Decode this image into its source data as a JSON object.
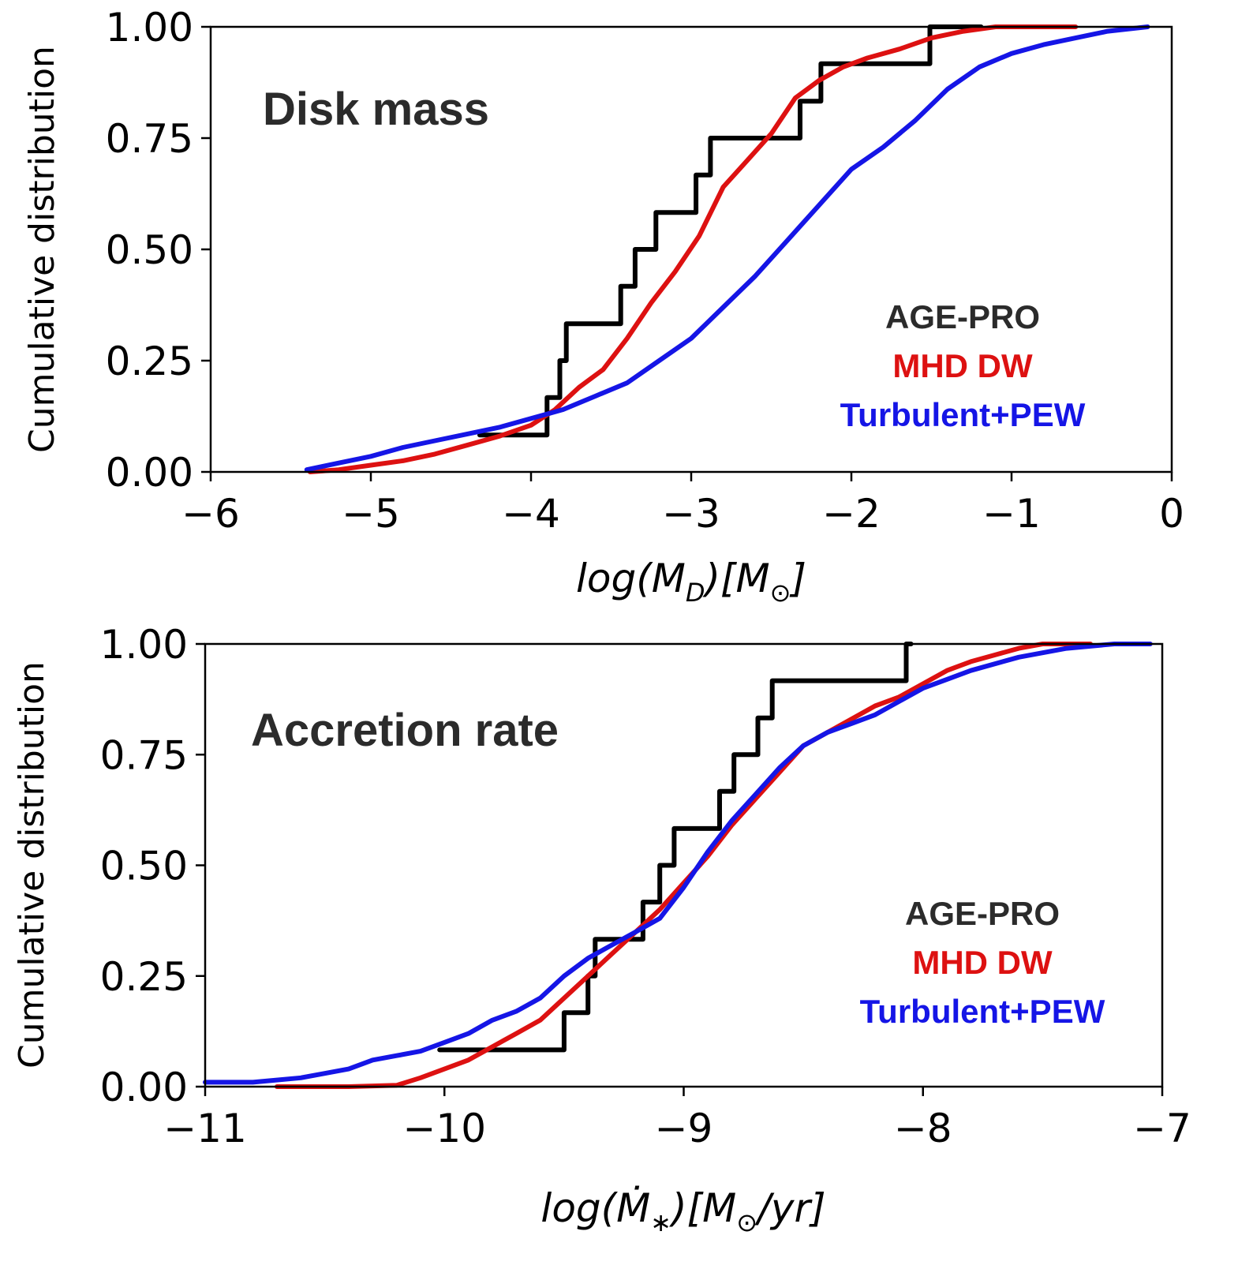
{
  "chart_data": [
    {
      "type": "line",
      "title": "Disk mass",
      "xlabel": "log(M_D)[M_⊙]",
      "xlabel_parts": {
        "pre": "log(",
        "M": "M",
        "sub": "D",
        "mid": ")[",
        "M2": "M",
        "sun": "⊙",
        "post": "]"
      },
      "ylabel": "Cumulative distribution",
      "xlim": [
        -6,
        0
      ],
      "ylim": [
        0,
        1
      ],
      "xticks": [
        -6,
        -5,
        -4,
        -3,
        -2,
        -1,
        0
      ],
      "xtick_labels": [
        "−6",
        "−5",
        "−4",
        "−3",
        "−2",
        "−1",
        "0"
      ],
      "yticks": [
        0,
        0.25,
        0.5,
        0.75,
        1.0
      ],
      "ytick_labels": [
        "0.00",
        "0.25",
        "0.50",
        "0.75",
        "1.00"
      ],
      "legend_position": "lower-right",
      "series": [
        {
          "name": "AGE-PRO",
          "color": "#000000",
          "step": true,
          "points": [
            [
              -4.32,
              0.083
            ],
            [
              -3.9,
              0.083
            ],
            [
              -3.9,
              0.167
            ],
            [
              -3.82,
              0.167
            ],
            [
              -3.82,
              0.25
            ],
            [
              -3.78,
              0.25
            ],
            [
              -3.78,
              0.333
            ],
            [
              -3.6,
              0.333
            ],
            [
              -3.44,
              0.333
            ],
            [
              -3.44,
              0.417
            ],
            [
              -3.35,
              0.417
            ],
            [
              -3.35,
              0.5
            ],
            [
              -3.22,
              0.5
            ],
            [
              -3.22,
              0.583
            ],
            [
              -2.97,
              0.583
            ],
            [
              -2.97,
              0.667
            ],
            [
              -2.88,
              0.667
            ],
            [
              -2.88,
              0.75
            ],
            [
              -2.52,
              0.75
            ],
            [
              -2.32,
              0.75
            ],
            [
              -2.32,
              0.833
            ],
            [
              -2.19,
              0.833
            ],
            [
              -2.19,
              0.917
            ],
            [
              -1.51,
              0.917
            ],
            [
              -1.51,
              1.0
            ],
            [
              -1.19,
              1.0
            ]
          ]
        },
        {
          "name": "MHD DW",
          "color": "#dd1111",
          "step": false,
          "points": [
            [
              -5.38,
              0.0
            ],
            [
              -5.2,
              0.005
            ],
            [
              -5.0,
              0.015
            ],
            [
              -4.8,
              0.025
            ],
            [
              -4.6,
              0.04
            ],
            [
              -4.4,
              0.06
            ],
            [
              -4.2,
              0.08
            ],
            [
              -4.0,
              0.105
            ],
            [
              -3.85,
              0.14
            ],
            [
              -3.7,
              0.19
            ],
            [
              -3.55,
              0.23
            ],
            [
              -3.4,
              0.3
            ],
            [
              -3.25,
              0.38
            ],
            [
              -3.1,
              0.45
            ],
            [
              -2.95,
              0.53
            ],
            [
              -2.8,
              0.64
            ],
            [
              -2.65,
              0.7
            ],
            [
              -2.5,
              0.76
            ],
            [
              -2.35,
              0.84
            ],
            [
              -2.2,
              0.88
            ],
            [
              -2.05,
              0.91
            ],
            [
              -1.9,
              0.93
            ],
            [
              -1.7,
              0.95
            ],
            [
              -1.5,
              0.975
            ],
            [
              -1.3,
              0.99
            ],
            [
              -1.1,
              1.0
            ],
            [
              -0.6,
              1.0
            ]
          ]
        },
        {
          "name": "Turbulent+PEW",
          "color": "#1515e6",
          "step": false,
          "points": [
            [
              -5.4,
              0.005
            ],
            [
              -5.2,
              0.02
            ],
            [
              -5.0,
              0.035
            ],
            [
              -4.8,
              0.055
            ],
            [
              -4.6,
              0.07
            ],
            [
              -4.4,
              0.085
            ],
            [
              -4.2,
              0.1
            ],
            [
              -4.0,
              0.12
            ],
            [
              -3.8,
              0.14
            ],
            [
              -3.6,
              0.17
            ],
            [
              -3.4,
              0.2
            ],
            [
              -3.2,
              0.25
            ],
            [
              -3.0,
              0.3
            ],
            [
              -2.8,
              0.37
            ],
            [
              -2.6,
              0.44
            ],
            [
              -2.4,
              0.52
            ],
            [
              -2.2,
              0.6
            ],
            [
              -2.0,
              0.68
            ],
            [
              -1.8,
              0.73
            ],
            [
              -1.6,
              0.79
            ],
            [
              -1.4,
              0.86
            ],
            [
              -1.2,
              0.91
            ],
            [
              -1.0,
              0.94
            ],
            [
              -0.8,
              0.96
            ],
            [
              -0.6,
              0.975
            ],
            [
              -0.4,
              0.99
            ],
            [
              -0.15,
              1.0
            ]
          ]
        }
      ]
    },
    {
      "type": "line",
      "title": "Accretion rate",
      "xlabel": "log(Ṁ_*)[M_⊙/yr]",
      "xlabel_parts": {
        "pre": "log(",
        "M": "Ṁ",
        "sub": "∗",
        "mid": ")[",
        "M2": "M",
        "sun": "⊙",
        "post": "/yr]"
      },
      "ylabel": "Cumulative distribution",
      "xlim": [
        -11,
        -7
      ],
      "ylim": [
        0,
        1
      ],
      "xticks": [
        -11,
        -10,
        -9,
        -8,
        -7
      ],
      "xtick_labels": [
        "−11",
        "−10",
        "−9",
        "−8",
        "−7"
      ],
      "yticks": [
        0,
        0.25,
        0.5,
        0.75,
        1.0
      ],
      "ytick_labels": [
        "0.00",
        "0.25",
        "0.50",
        "0.75",
        "1.00"
      ],
      "legend_position": "lower-right",
      "series": [
        {
          "name": "AGE-PRO",
          "color": "#000000",
          "step": true,
          "points": [
            [
              -10.02,
              0.083
            ],
            [
              -9.5,
              0.083
            ],
            [
              -9.5,
              0.167
            ],
            [
              -9.4,
              0.167
            ],
            [
              -9.4,
              0.25
            ],
            [
              -9.37,
              0.25
            ],
            [
              -9.37,
              0.333
            ],
            [
              -9.22,
              0.333
            ],
            [
              -9.17,
              0.333
            ],
            [
              -9.17,
              0.417
            ],
            [
              -9.1,
              0.417
            ],
            [
              -9.1,
              0.5
            ],
            [
              -9.04,
              0.5
            ],
            [
              -9.04,
              0.583
            ],
            [
              -8.85,
              0.583
            ],
            [
              -8.85,
              0.667
            ],
            [
              -8.79,
              0.667
            ],
            [
              -8.79,
              0.75
            ],
            [
              -8.69,
              0.75
            ],
            [
              -8.69,
              0.833
            ],
            [
              -8.63,
              0.833
            ],
            [
              -8.63,
              0.917
            ],
            [
              -8.07,
              0.917
            ],
            [
              -8.07,
              1.0
            ],
            [
              -8.05,
              1.0
            ]
          ]
        },
        {
          "name": "MHD DW",
          "color": "#dd1111",
          "step": false,
          "points": [
            [
              -10.7,
              0.0
            ],
            [
              -10.4,
              0.0
            ],
            [
              -10.2,
              0.003
            ],
            [
              -10.1,
              0.02
            ],
            [
              -10.0,
              0.04
            ],
            [
              -9.9,
              0.06
            ],
            [
              -9.8,
              0.09
            ],
            [
              -9.7,
              0.12
            ],
            [
              -9.6,
              0.15
            ],
            [
              -9.5,
              0.2
            ],
            [
              -9.4,
              0.25
            ],
            [
              -9.3,
              0.3
            ],
            [
              -9.2,
              0.35
            ],
            [
              -9.1,
              0.4
            ],
            [
              -9.0,
              0.46
            ],
            [
              -8.9,
              0.52
            ],
            [
              -8.8,
              0.59
            ],
            [
              -8.7,
              0.65
            ],
            [
              -8.6,
              0.71
            ],
            [
              -8.5,
              0.77
            ],
            [
              -8.4,
              0.8
            ],
            [
              -8.3,
              0.83
            ],
            [
              -8.2,
              0.86
            ],
            [
              -8.1,
              0.88
            ],
            [
              -8.0,
              0.91
            ],
            [
              -7.9,
              0.94
            ],
            [
              -7.8,
              0.96
            ],
            [
              -7.7,
              0.975
            ],
            [
              -7.6,
              0.99
            ],
            [
              -7.5,
              1.0
            ],
            [
              -7.3,
              1.0
            ]
          ]
        },
        {
          "name": "Turbulent+PEW",
          "color": "#1515e6",
          "step": false,
          "points": [
            [
              -11.0,
              0.01
            ],
            [
              -10.8,
              0.01
            ],
            [
              -10.6,
              0.02
            ],
            [
              -10.5,
              0.03
            ],
            [
              -10.4,
              0.04
            ],
            [
              -10.3,
              0.06
            ],
            [
              -10.2,
              0.07
            ],
            [
              -10.1,
              0.08
            ],
            [
              -10.0,
              0.1
            ],
            [
              -9.9,
              0.12
            ],
            [
              -9.8,
              0.15
            ],
            [
              -9.7,
              0.17
            ],
            [
              -9.6,
              0.2
            ],
            [
              -9.5,
              0.25
            ],
            [
              -9.4,
              0.29
            ],
            [
              -9.3,
              0.32
            ],
            [
              -9.2,
              0.35
            ],
            [
              -9.1,
              0.38
            ],
            [
              -9.0,
              0.45
            ],
            [
              -8.9,
              0.53
            ],
            [
              -8.8,
              0.6
            ],
            [
              -8.7,
              0.66
            ],
            [
              -8.6,
              0.72
            ],
            [
              -8.5,
              0.77
            ],
            [
              -8.4,
              0.8
            ],
            [
              -8.3,
              0.82
            ],
            [
              -8.2,
              0.84
            ],
            [
              -8.1,
              0.87
            ],
            [
              -8.0,
              0.9
            ],
            [
              -7.9,
              0.92
            ],
            [
              -7.8,
              0.94
            ],
            [
              -7.6,
              0.97
            ],
            [
              -7.4,
              0.99
            ],
            [
              -7.2,
              1.0
            ],
            [
              -7.05,
              1.0
            ]
          ]
        }
      ]
    }
  ]
}
